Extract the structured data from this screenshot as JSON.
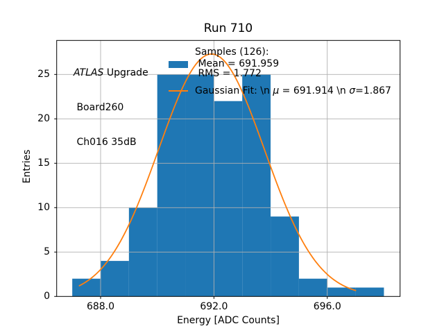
{
  "chart_data": {
    "type": "bar",
    "title": "Run 710",
    "xlabel": "Energy [ADC Counts]",
    "ylabel": "Entries",
    "bin_edges": [
      687,
      688,
      689,
      690,
      691,
      692,
      693,
      694,
      695,
      696,
      697,
      698
    ],
    "counts": [
      2,
      4,
      10,
      25,
      25,
      22,
      25,
      9,
      2,
      1,
      1
    ],
    "total_samples": 126,
    "bar_color": "#1f77b4",
    "xlim": [
      686.45,
      698.57
    ],
    "ylim": [
      0,
      28.83
    ],
    "xticks": [
      688,
      692,
      696
    ],
    "xtick_labels": [
      "688.0",
      "692.0",
      "696.0"
    ],
    "yticks": [
      0,
      5,
      10,
      15,
      20,
      25
    ],
    "ytick_labels": [
      "0",
      "5",
      "10",
      "15",
      "20",
      "25"
    ],
    "grid": true,
    "grid_color": "#b0b0b0",
    "frame_color": "#000000",
    "fit_curve": {
      "type": "gaussian",
      "mu": 691.914,
      "sigma": 1.867,
      "amplitude": 27.3,
      "x_start": 687.25,
      "x_end": 697.0,
      "color": "#ff7f0e"
    },
    "legend_position": "upper center"
  },
  "annotation": {
    "line1_italic": "ATLAS",
    "line1_rest": " Upgrade",
    "line2": " Board260",
    "line3": " Ch016 35dB"
  },
  "legend": {
    "samples_label": "Samples (126):",
    "mean_label": " Mean = 691.959",
    "rms_label": " RMS = 1.772",
    "gauss_parts": {
      "p0": "Gaussian Fit: \\n ",
      "mu": "μ",
      "p1": " = 691.914 \\n ",
      "sigma": "σ",
      "p2": "=1.867"
    },
    "swatch_color": "#1f77b4",
    "line_color": "#ff7f0e"
  }
}
